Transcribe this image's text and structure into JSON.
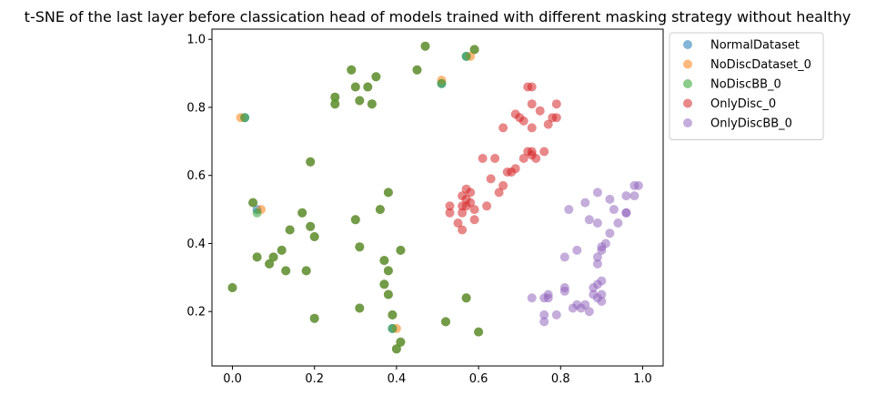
{
  "chart_data": {
    "type": "scatter",
    "title": "t-SNE of the last layer before classication head of models trained with different masking strategy without healthy",
    "xlabel": "",
    "ylabel": "",
    "xlim": [
      -0.05,
      1.05
    ],
    "ylim": [
      0.04,
      1.03
    ],
    "x_ticks": [
      "0.0",
      "0.2",
      "0.4",
      "0.6",
      "0.8",
      "1.0"
    ],
    "y_ticks": [
      "0.2",
      "0.4",
      "0.6",
      "0.8",
      "1.0"
    ],
    "grid": false,
    "legend_position": "upper-right-outside",
    "series": [
      {
        "name": "NormalDataset",
        "color": "#1f77b4",
        "points": [
          [
            0.47,
            0.98
          ],
          [
            0.59,
            0.97
          ],
          [
            0.45,
            0.91
          ],
          [
            0.29,
            0.91
          ],
          [
            0.35,
            0.89
          ],
          [
            0.57,
            0.95
          ],
          [
            0.51,
            0.87
          ],
          [
            0.03,
            0.77
          ],
          [
            0.3,
            0.86
          ],
          [
            0.33,
            0.86
          ],
          [
            0.25,
            0.83
          ],
          [
            0.31,
            0.82
          ],
          [
            0.25,
            0.81
          ],
          [
            0.34,
            0.81
          ],
          [
            0.19,
            0.64
          ],
          [
            0.38,
            0.55
          ],
          [
            0.05,
            0.52
          ],
          [
            0.06,
            0.5
          ],
          [
            0.36,
            0.5
          ],
          [
            0.17,
            0.49
          ],
          [
            0.3,
            0.47
          ],
          [
            0.14,
            0.44
          ],
          [
            0.19,
            0.45
          ],
          [
            0.2,
            0.42
          ],
          [
            0.31,
            0.39
          ],
          [
            0.41,
            0.38
          ],
          [
            0.12,
            0.38
          ],
          [
            0.1,
            0.36
          ],
          [
            0.06,
            0.36
          ],
          [
            0.37,
            0.35
          ],
          [
            0.09,
            0.34
          ],
          [
            0.13,
            0.32
          ],
          [
            0.18,
            0.32
          ],
          [
            0.38,
            0.32
          ],
          [
            0.37,
            0.28
          ],
          [
            0.0,
            0.27
          ],
          [
            0.38,
            0.25
          ],
          [
            0.57,
            0.24
          ],
          [
            0.31,
            0.21
          ],
          [
            0.39,
            0.19
          ],
          [
            0.2,
            0.18
          ],
          [
            0.52,
            0.17
          ],
          [
            0.39,
            0.15
          ],
          [
            0.6,
            0.14
          ],
          [
            0.41,
            0.11
          ],
          [
            0.4,
            0.09
          ]
        ]
      },
      {
        "name": "NoDiscDataset_0",
        "color": "#ff7f0e",
        "points": [
          [
            0.47,
            0.98
          ],
          [
            0.59,
            0.97
          ],
          [
            0.45,
            0.91
          ],
          [
            0.29,
            0.91
          ],
          [
            0.35,
            0.89
          ],
          [
            0.58,
            0.95
          ],
          [
            0.51,
            0.88
          ],
          [
            0.02,
            0.77
          ],
          [
            0.3,
            0.86
          ],
          [
            0.33,
            0.86
          ],
          [
            0.25,
            0.83
          ],
          [
            0.31,
            0.82
          ],
          [
            0.25,
            0.81
          ],
          [
            0.34,
            0.81
          ],
          [
            0.19,
            0.64
          ],
          [
            0.38,
            0.55
          ],
          [
            0.05,
            0.52
          ],
          [
            0.07,
            0.5
          ],
          [
            0.36,
            0.5
          ],
          [
            0.17,
            0.49
          ],
          [
            0.3,
            0.47
          ],
          [
            0.14,
            0.44
          ],
          [
            0.19,
            0.45
          ],
          [
            0.2,
            0.42
          ],
          [
            0.31,
            0.39
          ],
          [
            0.41,
            0.38
          ],
          [
            0.12,
            0.38
          ],
          [
            0.1,
            0.36
          ],
          [
            0.06,
            0.36
          ],
          [
            0.37,
            0.35
          ],
          [
            0.09,
            0.34
          ],
          [
            0.13,
            0.32
          ],
          [
            0.18,
            0.32
          ],
          [
            0.38,
            0.32
          ],
          [
            0.37,
            0.28
          ],
          [
            0.0,
            0.27
          ],
          [
            0.38,
            0.25
          ],
          [
            0.57,
            0.24
          ],
          [
            0.31,
            0.21
          ],
          [
            0.39,
            0.19
          ],
          [
            0.2,
            0.18
          ],
          [
            0.52,
            0.17
          ],
          [
            0.4,
            0.15
          ],
          [
            0.6,
            0.14
          ],
          [
            0.41,
            0.11
          ],
          [
            0.4,
            0.09
          ]
        ]
      },
      {
        "name": "NoDiscBB_0",
        "color": "#2ca02c",
        "points": [
          [
            0.47,
            0.98
          ],
          [
            0.59,
            0.97
          ],
          [
            0.45,
            0.91
          ],
          [
            0.29,
            0.91
          ],
          [
            0.35,
            0.89
          ],
          [
            0.57,
            0.95
          ],
          [
            0.51,
            0.87
          ],
          [
            0.03,
            0.77
          ],
          [
            0.3,
            0.86
          ],
          [
            0.33,
            0.86
          ],
          [
            0.25,
            0.83
          ],
          [
            0.31,
            0.82
          ],
          [
            0.25,
            0.81
          ],
          [
            0.34,
            0.81
          ],
          [
            0.19,
            0.64
          ],
          [
            0.38,
            0.55
          ],
          [
            0.05,
            0.52
          ],
          [
            0.06,
            0.49
          ],
          [
            0.36,
            0.5
          ],
          [
            0.17,
            0.49
          ],
          [
            0.3,
            0.47
          ],
          [
            0.14,
            0.44
          ],
          [
            0.19,
            0.45
          ],
          [
            0.2,
            0.42
          ],
          [
            0.31,
            0.39
          ],
          [
            0.41,
            0.38
          ],
          [
            0.12,
            0.38
          ],
          [
            0.1,
            0.36
          ],
          [
            0.06,
            0.36
          ],
          [
            0.37,
            0.35
          ],
          [
            0.09,
            0.34
          ],
          [
            0.13,
            0.32
          ],
          [
            0.18,
            0.32
          ],
          [
            0.38,
            0.32
          ],
          [
            0.37,
            0.28
          ],
          [
            0.0,
            0.27
          ],
          [
            0.38,
            0.25
          ],
          [
            0.57,
            0.24
          ],
          [
            0.31,
            0.21
          ],
          [
            0.39,
            0.19
          ],
          [
            0.2,
            0.18
          ],
          [
            0.52,
            0.17
          ],
          [
            0.39,
            0.15
          ],
          [
            0.6,
            0.14
          ],
          [
            0.41,
            0.11
          ],
          [
            0.4,
            0.09
          ]
        ]
      },
      {
        "name": "OnlyDisc_0",
        "color": "#d62728",
        "points": [
          [
            0.72,
            0.86
          ],
          [
            0.73,
            0.86
          ],
          [
            0.73,
            0.81
          ],
          [
            0.75,
            0.79
          ],
          [
            0.79,
            0.81
          ],
          [
            0.69,
            0.78
          ],
          [
            0.7,
            0.77
          ],
          [
            0.78,
            0.77
          ],
          [
            0.79,
            0.77
          ],
          [
            0.71,
            0.76
          ],
          [
            0.77,
            0.75
          ],
          [
            0.73,
            0.74
          ],
          [
            0.66,
            0.74
          ],
          [
            0.61,
            0.65
          ],
          [
            0.64,
            0.65
          ],
          [
            0.72,
            0.67
          ],
          [
            0.73,
            0.67
          ],
          [
            0.73,
            0.66
          ],
          [
            0.76,
            0.67
          ],
          [
            0.74,
            0.65
          ],
          [
            0.71,
            0.65
          ],
          [
            0.69,
            0.62
          ],
          [
            0.68,
            0.61
          ],
          [
            0.67,
            0.61
          ],
          [
            0.63,
            0.59
          ],
          [
            0.66,
            0.57
          ],
          [
            0.65,
            0.55
          ],
          [
            0.57,
            0.56
          ],
          [
            0.56,
            0.54
          ],
          [
            0.58,
            0.55
          ],
          [
            0.57,
            0.53
          ],
          [
            0.58,
            0.52
          ],
          [
            0.56,
            0.51
          ],
          [
            0.53,
            0.51
          ],
          [
            0.53,
            0.49
          ],
          [
            0.62,
            0.51
          ],
          [
            0.59,
            0.5
          ],
          [
            0.56,
            0.49
          ],
          [
            0.55,
            0.46
          ],
          [
            0.59,
            0.47
          ],
          [
            0.56,
            0.44
          ],
          [
            0.57,
            0.51
          ]
        ]
      },
      {
        "name": "OnlyDiscBB_0",
        "color": "#9467bd",
        "points": [
          [
            0.98,
            0.57
          ],
          [
            0.99,
            0.57
          ],
          [
            0.89,
            0.55
          ],
          [
            0.96,
            0.54
          ],
          [
            0.98,
            0.54
          ],
          [
            0.92,
            0.53
          ],
          [
            0.86,
            0.52
          ],
          [
            0.82,
            0.5
          ],
          [
            0.93,
            0.5
          ],
          [
            0.96,
            0.49
          ],
          [
            0.87,
            0.47
          ],
          [
            0.89,
            0.46
          ],
          [
            0.94,
            0.46
          ],
          [
            0.96,
            0.49
          ],
          [
            0.92,
            0.43
          ],
          [
            0.91,
            0.4
          ],
          [
            0.9,
            0.39
          ],
          [
            0.9,
            0.38
          ],
          [
            0.84,
            0.38
          ],
          [
            0.89,
            0.36
          ],
          [
            0.81,
            0.36
          ],
          [
            0.89,
            0.34
          ],
          [
            0.81,
            0.27
          ],
          [
            0.81,
            0.26
          ],
          [
            0.89,
            0.28
          ],
          [
            0.88,
            0.27
          ],
          [
            0.9,
            0.29
          ],
          [
            0.88,
            0.25
          ],
          [
            0.9,
            0.25
          ],
          [
            0.89,
            0.24
          ],
          [
            0.9,
            0.23
          ],
          [
            0.77,
            0.25
          ],
          [
            0.76,
            0.24
          ],
          [
            0.77,
            0.24
          ],
          [
            0.73,
            0.24
          ],
          [
            0.84,
            0.22
          ],
          [
            0.86,
            0.22
          ],
          [
            0.83,
            0.21
          ],
          [
            0.85,
            0.21
          ],
          [
            0.87,
            0.2
          ],
          [
            0.76,
            0.19
          ],
          [
            0.76,
            0.17
          ],
          [
            0.79,
            0.19
          ]
        ]
      }
    ]
  }
}
